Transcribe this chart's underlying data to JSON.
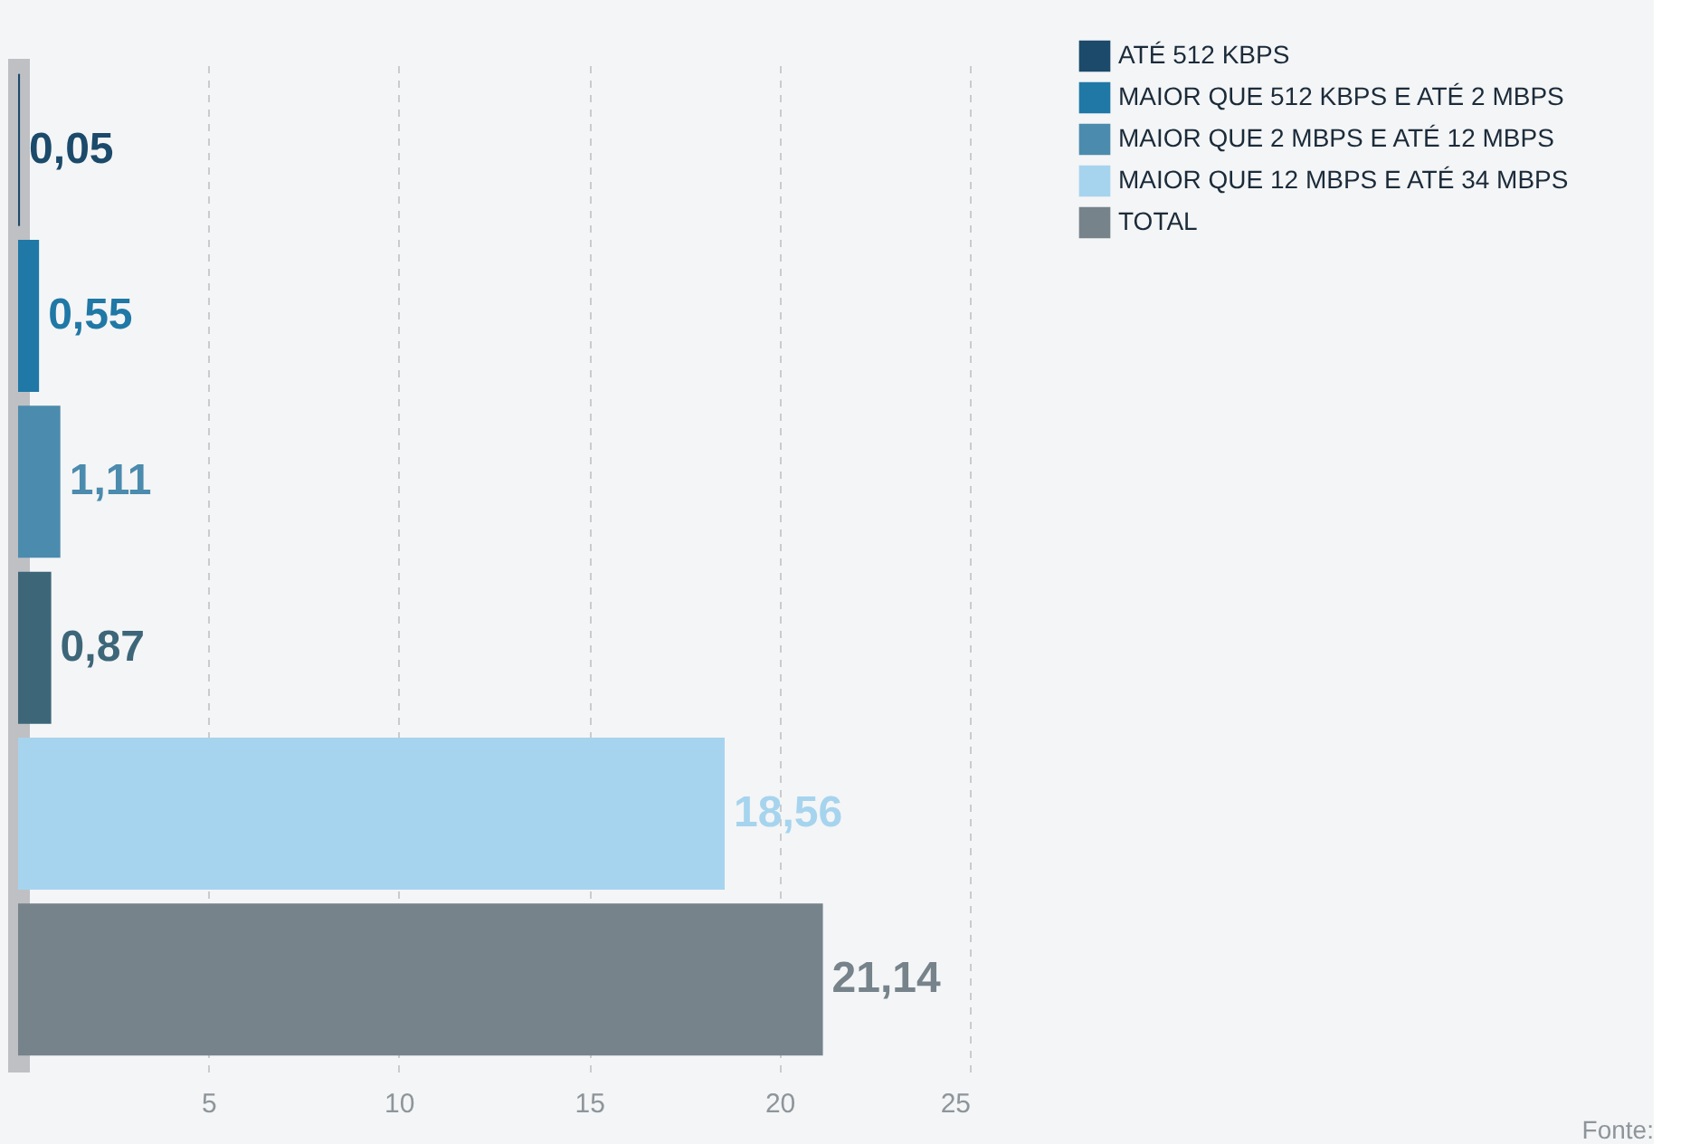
{
  "chart_data": {
    "type": "bar",
    "orientation": "horizontal",
    "categories": [
      null,
      null,
      null,
      null,
      null,
      null
    ],
    "series": [
      {
        "name": "ATÉ 512 KBPS",
        "color": "#1b4a6b",
        "values": [
          0.05,
          null,
          null,
          null,
          null,
          null
        ],
        "value_labels": [
          "0,05",
          null,
          null,
          null,
          null,
          null
        ]
      },
      {
        "name": "MAIOR QUE 512 KBPS E ATÉ 2 MBPS",
        "color": "#1f78a6",
        "values": [
          null,
          0.55,
          null,
          null,
          null,
          null
        ],
        "value_labels": [
          null,
          "0,55",
          null,
          null,
          null,
          null
        ]
      },
      {
        "name": "MAIOR QUE 2 MBPS E ATÉ 12 MBPS",
        "color": "#4b8bae",
        "values": [
          null,
          null,
          1.11,
          null,
          null,
          null
        ],
        "value_labels": [
          null,
          null,
          "1,11",
          null,
          null,
          null
        ]
      },
      {
        "color": "#3d6679",
        "values": [
          null,
          null,
          null,
          0.87,
          null,
          null
        ],
        "value_labels": [
          null,
          null,
          null,
          "0,87",
          null,
          null
        ]
      },
      {
        "name": "MAIOR QUE 12 MBPS E ATÉ 34 MBPS",
        "color": "#a6d4ee",
        "values": [
          null,
          null,
          null,
          null,
          18.56,
          null
        ],
        "value_labels": [
          null,
          null,
          null,
          null,
          "18,56",
          null
        ]
      },
      {
        "name": "TOTAL",
        "color": "#76838b",
        "values": [
          null,
          null,
          null,
          null,
          null,
          21.14
        ],
        "value_labels": [
          null,
          null,
          null,
          null,
          null,
          "21,14"
        ]
      }
    ],
    "xlim": [
      0,
      25
    ],
    "xticks": [
      5,
      10,
      15,
      20,
      25
    ],
    "grid": "x",
    "legend": "top right",
    "annotations": [
      "Fonte:"
    ]
  }
}
